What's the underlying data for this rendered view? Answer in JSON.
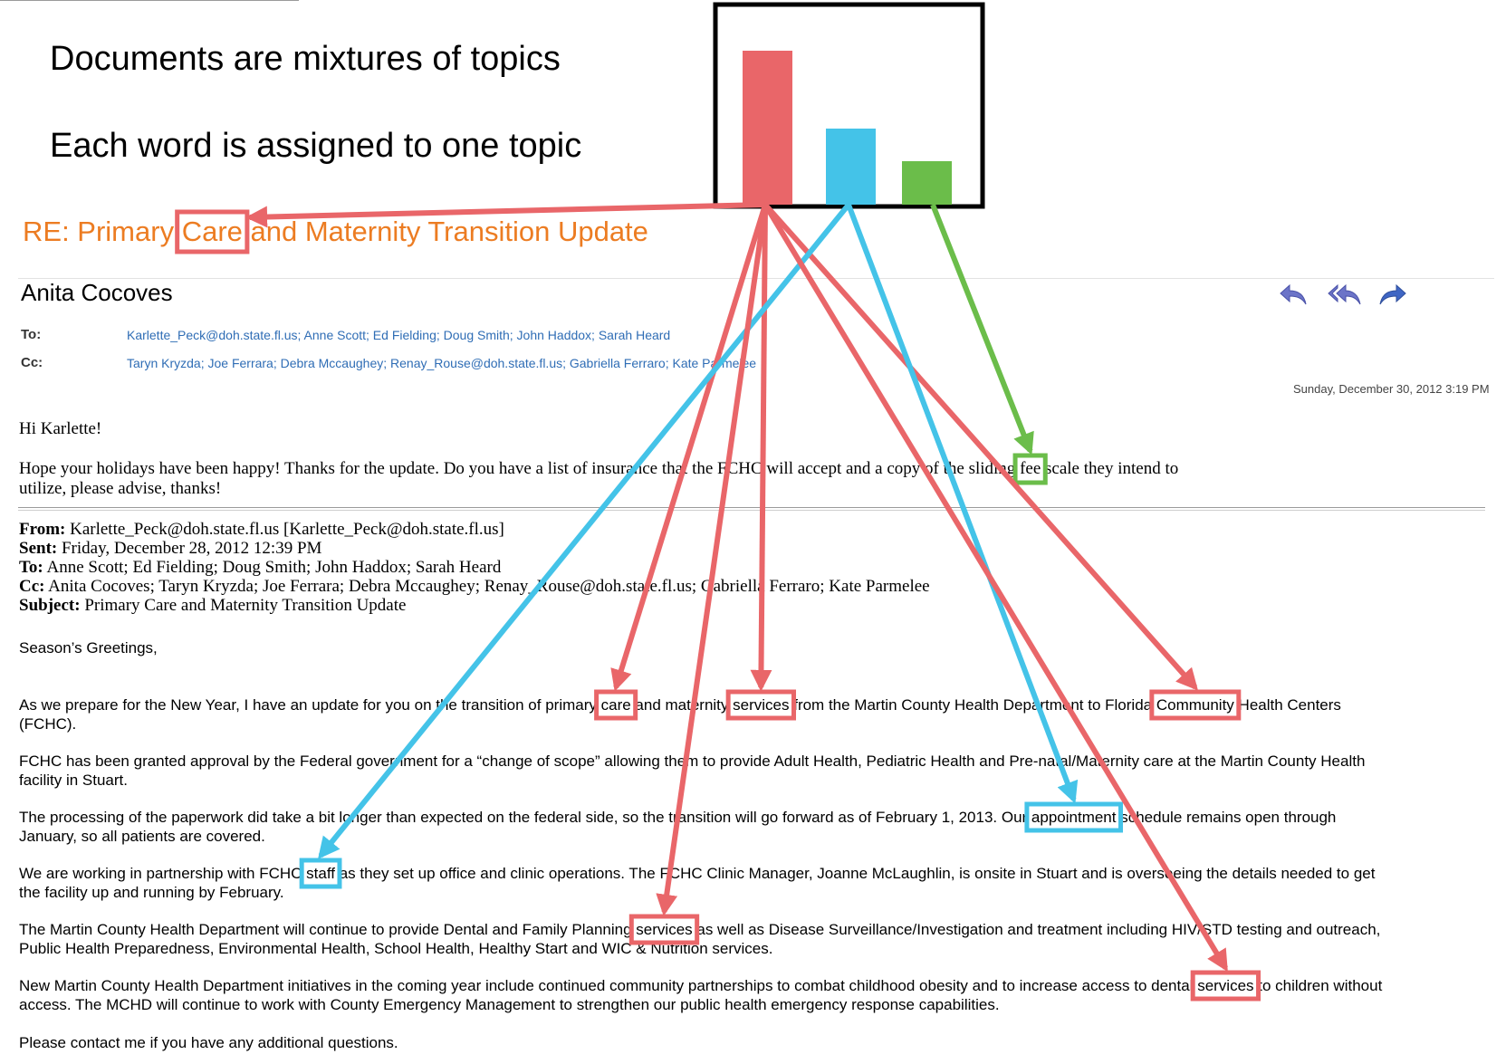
{
  "slide": {
    "heading1": "Documents are mixtures of topics",
    "heading2": "Each word is assigned to one topic"
  },
  "topics": {
    "colors": {
      "red": "#e96669",
      "blue": "#44c3e8",
      "green": "#6bbd4a"
    },
    "proportions": [
      0.85,
      0.42,
      0.24
    ]
  },
  "email": {
    "subject_prefix": "RE: Primary ",
    "subject_word": "Care",
    "subject_suffix": " and Maternity Transition Update",
    "sender": "Anita Cocoves",
    "to_label": "To:",
    "to_value": "Karlette_Peck@doh.state.fl.us; Anne Scott; Ed Fielding; Doug Smith; John Haddox; Sarah Heard",
    "cc_label": "Cc:",
    "cc_value": "Taryn Kryzda; Joe Ferrara; Debra Mccaughey; Renay_Rouse@doh.state.fl.us; Gabriella Ferraro; Kate Parmelee",
    "date": "Sunday, December 30, 2012 3:19 PM",
    "greeting": "Hi Karlette!",
    "reply_line1_a": "Hope your holidays have been happy!  Thanks for the update.  Do you have a list of insurance that the FCHC will accept and a copy of the sliding ",
    "reply_fee": "fee",
    "reply_line1_b": " scale they intend to",
    "reply_line2": "utilize, please advise, thanks!",
    "from_label": "From:",
    "from_value": " Karlette_Peck@doh.state.fl.us [Karlette_Peck@doh.state.fl.us]",
    "sent_label": "Sent:",
    "sent_value": " Friday, December 28, 2012 12:39 PM",
    "to2_label": "To:",
    "to2_value": " Anne Scott; Ed Fielding; Doug Smith; John Haddox; Sarah Heard",
    "cc2_label": "Cc:",
    "cc2_value": " Anita Cocoves; Taryn Kryzda; Joe Ferrara; Debra Mccaughey; Renay_Rouse@doh.state.fl.us; Gabriella Ferraro; Kate Parmelee",
    "subj_label": "Subject:",
    "subj_value": " Primary Care and Maternity Transition Update",
    "seasons": "Season’s Greetings,",
    "p1_line1_a": "As we prepare for the New Year, I have an update for you on the transition of primary ",
    "p1_care": "care",
    "p1_line1_b": " and maternity ",
    "p1_services": "services",
    "p1_line1_c": " from the Martin County Health Department to Florida ",
    "p1_community": "Community",
    "p1_line1_d": " Health Centers",
    "p1_line2": "(FCHC).",
    "p2_line1": "FCHC has been granted approval by the Federal government for a “change of scope” allowing them to provide Adult Health, Pediatric Health and Pre-natal/Maternity care at the Martin County Health",
    "p2_line2": "facility in Stuart.",
    "p3_line1_a": "The processing of the paperwork did take a bit longer than expected on the federal side, so the transition will go forward as of February 1, 2013. Our ",
    "p3_appointment": "appointment",
    "p3_line1_b": " schedule remains open through",
    "p3_line2": "January, so all patients are covered.",
    "p4_line1_a": "We are working in partnership with FCHC ",
    "p4_staff": "staff",
    "p4_line1_b": " as they set up office and clinic operations. The FCHC Clinic Manager, Joanne McLaughlin, is onsite in Stuart and is overseeing the details needed to get",
    "p4_line2": "the facility up and running by February.",
    "p5_line1_a": "The Martin County Health Department will continue to provide Dental and Family Planning ",
    "p5_services": "services",
    "p5_line1_b": " as well as Disease Surveillance/Investigation and treatment including HIV/STD testing and outreach,",
    "p5_line2": "Public Health Preparedness, Environmental Health, School Health, Healthy Start and WIC & Nutrition services.",
    "p6_line1_a": "New Martin County Health Department initiatives in the coming year include continued community partnerships to combat childhood obesity and to increase access to dental ",
    "p6_services": "services",
    "p6_line1_b": " to children without",
    "p6_line2": "access. The MCHD will continue to work with County Emergency Management to strengthen our public health emergency response capabilities.",
    "closing": "Please contact me if you have any additional questions."
  },
  "highlighted_words": [
    {
      "word": "Care",
      "topic": "red"
    },
    {
      "word": "fee",
      "topic": "green"
    },
    {
      "word": "care",
      "topic": "red"
    },
    {
      "word": "services",
      "topic": "red"
    },
    {
      "word": "Community",
      "topic": "red"
    },
    {
      "word": "appointment",
      "topic": "blue"
    },
    {
      "word": "staff",
      "topic": "blue"
    },
    {
      "word": "services",
      "topic": "red"
    },
    {
      "word": "services",
      "topic": "red"
    }
  ],
  "icons": [
    "reply-icon",
    "reply-all-icon",
    "forward-icon"
  ]
}
